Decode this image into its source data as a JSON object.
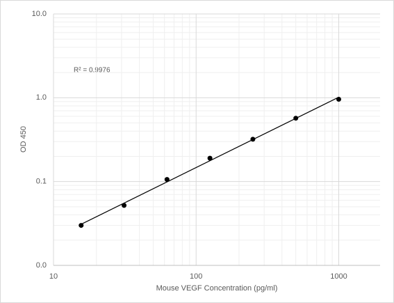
{
  "chart_data": {
    "type": "scatter",
    "x_label": "Mouse VEGF  Concentration (pg/ml)",
    "y_label": "OD 450",
    "annotation": "R² = 0.9976",
    "series": [
      {
        "name": "OD 450",
        "color": "#000000",
        "x": [
          15.625,
          31.25,
          62.5,
          125,
          250,
          500,
          1000
        ],
        "values": [
          0.03,
          0.052,
          0.106,
          0.19,
          0.32,
          0.57,
          0.96
        ]
      }
    ],
    "trendline": {
      "type": "power",
      "color": "#000000"
    },
    "xlim": [
      10,
      1950
    ],
    "xticks": [
      10,
      100,
      1000
    ],
    "xlog": true,
    "ylim": [
      0.01,
      10
    ],
    "yticks": [
      {
        "value": 0.01,
        "label": "0.0"
      },
      {
        "value": 0.1,
        "label": "0.1"
      },
      {
        "value": 1,
        "label": "1.0"
      },
      {
        "value": 10,
        "label": "10.0"
      }
    ],
    "ylog": true,
    "grid": true,
    "minor_grid": true
  }
}
